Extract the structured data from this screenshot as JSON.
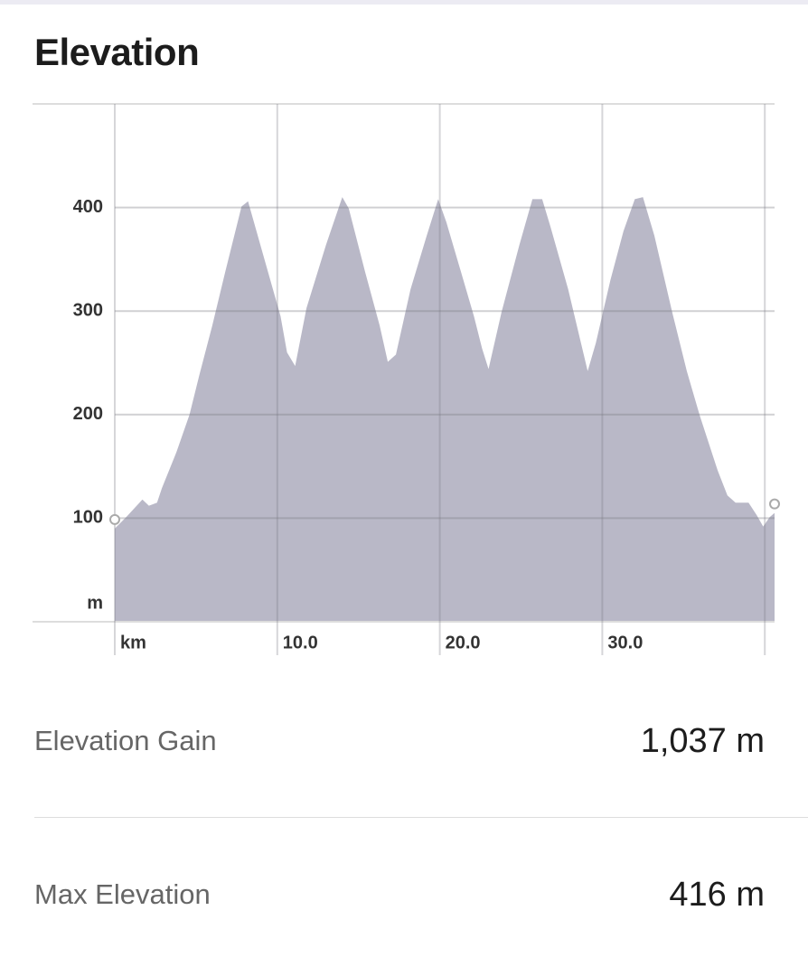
{
  "header": {
    "title": "Elevation"
  },
  "chart_data": {
    "type": "area",
    "color": "#b9b8c7",
    "x": [
      0,
      0.7,
      1.7,
      2.1,
      2.6,
      2.9,
      3.8,
      4.6,
      5.2,
      6.0,
      6.8,
      7.8,
      8.2,
      9.1,
      10.2,
      10.6,
      11.1,
      11.8,
      13.0,
      14.0,
      14.4,
      15.4,
      16.3,
      16.8,
      17.3,
      18.2,
      19.2,
      19.9,
      20.4,
      21.3,
      22.1,
      22.6,
      23.0,
      23.8,
      24.9,
      25.7,
      26.3,
      26.8,
      27.9,
      29.1,
      29.6,
      30.5,
      31.3,
      32.0,
      32.5,
      33.2,
      34.3,
      35.2,
      36.0,
      37.1,
      37.7,
      38.2,
      39.0,
      39.5,
      39.9,
      40.3,
      40.6
    ],
    "values": [
      90,
      101,
      118,
      112,
      115,
      129,
      164,
      200,
      238,
      286,
      338,
      401,
      406,
      356,
      295,
      260,
      247,
      303,
      364,
      410,
      399,
      338,
      286,
      251,
      258,
      321,
      373,
      408,
      386,
      338,
      295,
      264,
      244,
      299,
      364,
      408,
      408,
      382,
      321,
      242,
      269,
      330,
      377,
      408,
      410,
      373,
      299,
      242,
      199,
      146,
      122,
      115,
      115,
      103,
      92,
      101,
      105
    ],
    "xlim": [
      0,
      40.6
    ],
    "ylim": [
      0,
      500
    ],
    "xticks": [
      {
        "value": 0,
        "label": "km"
      },
      {
        "value": 10,
        "label": "10.0"
      },
      {
        "value": 20,
        "label": "20.0"
      },
      {
        "value": 30,
        "label": "30.0"
      },
      {
        "value": 40,
        "label": null
      }
    ],
    "yticks": [
      {
        "value": 0,
        "label": "m"
      },
      100,
      200,
      300,
      400
    ],
    "grid": true
  },
  "stats": [
    {
      "label": "Elevation Gain",
      "value": "1,037 m"
    },
    {
      "label": "Max Elevation",
      "value": "416 m"
    }
  ]
}
